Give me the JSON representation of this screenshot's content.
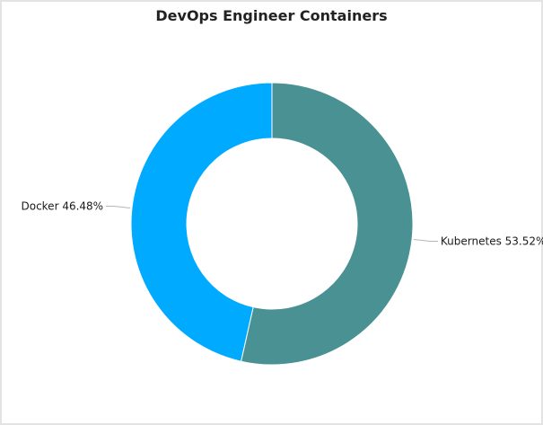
{
  "chart_data": {
    "type": "pie",
    "variant": "donut",
    "title": "DevOps Engineer Containers",
    "slices": [
      {
        "name": "Kubernetes",
        "value": 53.52,
        "label": "Kubernetes 53.52%",
        "color": "#4a9193"
      },
      {
        "name": "Docker",
        "value": 46.48,
        "label": "Docker 46.48%",
        "color": "#00aaff"
      }
    ],
    "start_angle_deg": 0,
    "direction": "clockwise",
    "legend": "none",
    "label_style": "outside-with-leader-lines"
  }
}
